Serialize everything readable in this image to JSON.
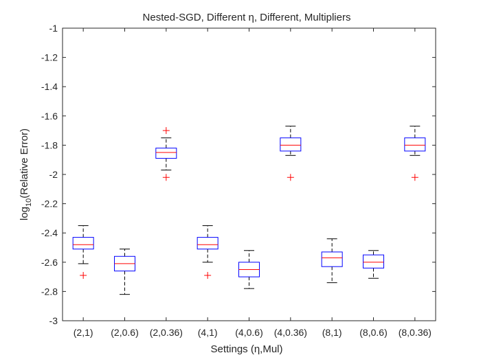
{
  "chart_data": {
    "type": "box",
    "title": "Nested-SGD, Different η, Different, Multipliers",
    "xlabel": "Settings (η,Mul)",
    "ylabel": {
      "prefix": "log",
      "subscript": "10",
      "suffix": "(Relative Error)"
    },
    "ylim": [
      -3,
      -1
    ],
    "yticks": [
      -3,
      -2.8,
      -2.6,
      -2.4,
      -2.2,
      -2,
      -1.8,
      -1.6,
      -1.4,
      -1.2,
      -1
    ],
    "ytick_labels": [
      "-3",
      "-2.8",
      "-2.6",
      "-2.4",
      "-2.2",
      "-2",
      "-1.8",
      "-1.6",
      "-1.4",
      "-1.2",
      "-1"
    ],
    "grid": false,
    "colors": {
      "box": "#0000ff",
      "median": "#ff0000",
      "whisker": "#000000",
      "outlier": "#ff0000",
      "axes": "#262626"
    },
    "categories": [
      "(2,1)",
      "(2,0.6)",
      "(2,0.36)",
      "(4,1)",
      "(4,0.6)",
      "(4,0.36)",
      "(8,1)",
      "(8,0.6)",
      "(8,0.36)"
    ],
    "boxes": [
      {
        "whisker_low": -2.61,
        "q1": -2.51,
        "median": -2.48,
        "q3": -2.43,
        "whisker_high": -2.35,
        "outliers": [
          -2.69
        ]
      },
      {
        "whisker_low": -2.82,
        "q1": -2.66,
        "median": -2.61,
        "q3": -2.56,
        "whisker_high": -2.51,
        "outliers": []
      },
      {
        "whisker_low": -1.97,
        "q1": -1.89,
        "median": -1.85,
        "q3": -1.82,
        "whisker_high": -1.75,
        "outliers": [
          -2.02,
          -1.7
        ]
      },
      {
        "whisker_low": -2.6,
        "q1": -2.51,
        "median": -2.48,
        "q3": -2.43,
        "whisker_high": -2.35,
        "outliers": [
          -2.69
        ]
      },
      {
        "whisker_low": -2.78,
        "q1": -2.7,
        "median": -2.65,
        "q3": -2.6,
        "whisker_high": -2.52,
        "outliers": []
      },
      {
        "whisker_low": -1.87,
        "q1": -1.84,
        "median": -1.8,
        "q3": -1.75,
        "whisker_high": -1.67,
        "outliers": [
          -2.02
        ]
      },
      {
        "whisker_low": -2.74,
        "q1": -2.63,
        "median": -2.57,
        "q3": -2.53,
        "whisker_high": -2.44,
        "outliers": []
      },
      {
        "whisker_low": -2.71,
        "q1": -2.64,
        "median": -2.6,
        "q3": -2.55,
        "whisker_high": -2.52,
        "outliers": []
      },
      {
        "whisker_low": -1.87,
        "q1": -1.84,
        "median": -1.8,
        "q3": -1.75,
        "whisker_high": -1.67,
        "outliers": [
          -2.02
        ]
      }
    ]
  }
}
